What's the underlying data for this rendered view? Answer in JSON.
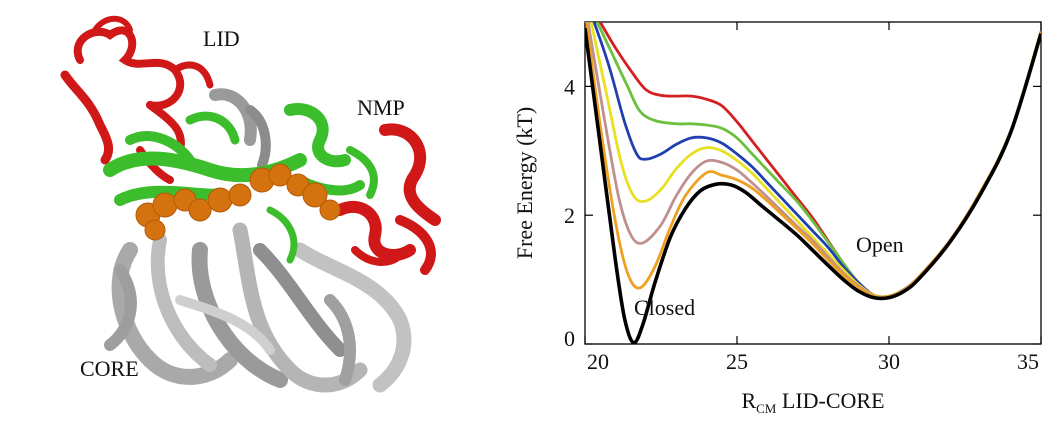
{
  "protein_labels": {
    "lid": "LID",
    "nmp": "NMP",
    "core": "CORE"
  },
  "chart_data": {
    "type": "line",
    "xlabel_main": "R",
    "xlabel_sub": "CM",
    "xlabel_rest": " LID-CORE",
    "ylabel": "Free Energy (kT)",
    "xlim": [
      20,
      35
    ],
    "ylim": [
      0,
      5
    ],
    "xticks": [
      20,
      25,
      30,
      35
    ],
    "yticks": [
      0,
      2,
      4
    ],
    "annotations": {
      "closed": "Closed",
      "open": "Open"
    },
    "series": [
      {
        "color": "#d42020",
        "points": [
          [
            20.5,
            5.0
          ],
          [
            21.0,
            4.6
          ],
          [
            21.5,
            4.25
          ],
          [
            22.0,
            3.95
          ],
          [
            22.5,
            3.86
          ],
          [
            23.0,
            3.85
          ],
          [
            23.5,
            3.85
          ],
          [
            24.0,
            3.8
          ],
          [
            24.5,
            3.7
          ],
          [
            25.0,
            3.45
          ],
          [
            25.5,
            3.15
          ],
          [
            26.0,
            2.85
          ],
          [
            26.5,
            2.55
          ],
          [
            27.0,
            2.25
          ],
          [
            27.5,
            1.95
          ],
          [
            28.0,
            1.6
          ],
          [
            28.5,
            1.25
          ],
          [
            29.0,
            0.95
          ],
          [
            29.5,
            0.76
          ],
          [
            30.0,
            0.74
          ],
          [
            30.5,
            0.85
          ],
          [
            31.0,
            1.05
          ],
          [
            32.0,
            1.6
          ],
          [
            33.0,
            2.35
          ],
          [
            34.0,
            3.3
          ],
          [
            35.0,
            4.85
          ]
        ]
      },
      {
        "color": "#6cc040",
        "points": [
          [
            20.4,
            5.0
          ],
          [
            20.9,
            4.5
          ],
          [
            21.4,
            4.0
          ],
          [
            21.8,
            3.62
          ],
          [
            22.3,
            3.47
          ],
          [
            23.0,
            3.42
          ],
          [
            23.5,
            3.42
          ],
          [
            24.0,
            3.4
          ],
          [
            24.5,
            3.35
          ],
          [
            25.0,
            3.2
          ],
          [
            25.5,
            2.95
          ],
          [
            26.0,
            2.7
          ],
          [
            26.5,
            2.45
          ],
          [
            27.0,
            2.2
          ],
          [
            27.5,
            1.9
          ],
          [
            28.0,
            1.58
          ],
          [
            28.5,
            1.25
          ],
          [
            29.0,
            0.95
          ],
          [
            29.5,
            0.76
          ],
          [
            30.0,
            0.74
          ],
          [
            30.5,
            0.85
          ],
          [
            31.0,
            1.05
          ],
          [
            32.0,
            1.6
          ],
          [
            33.0,
            2.35
          ],
          [
            34.0,
            3.3
          ],
          [
            35.0,
            4.85
          ]
        ]
      },
      {
        "color": "#2040b0",
        "points": [
          [
            20.3,
            5.0
          ],
          [
            20.8,
            4.3
          ],
          [
            21.3,
            3.45
          ],
          [
            21.7,
            2.95
          ],
          [
            22.0,
            2.87
          ],
          [
            22.5,
            2.95
          ],
          [
            23.0,
            3.1
          ],
          [
            23.5,
            3.2
          ],
          [
            24.0,
            3.2
          ],
          [
            24.5,
            3.12
          ],
          [
            25.0,
            2.95
          ],
          [
            25.5,
            2.75
          ],
          [
            26.0,
            2.5
          ],
          [
            26.5,
            2.25
          ],
          [
            27.0,
            2.0
          ],
          [
            27.5,
            1.75
          ],
          [
            28.0,
            1.5
          ],
          [
            28.5,
            1.2
          ],
          [
            29.0,
            0.95
          ],
          [
            29.5,
            0.76
          ],
          [
            30.0,
            0.74
          ],
          [
            30.5,
            0.85
          ],
          [
            31.0,
            1.05
          ],
          [
            32.0,
            1.6
          ],
          [
            33.0,
            2.35
          ],
          [
            34.0,
            3.3
          ],
          [
            35.0,
            4.85
          ]
        ]
      },
      {
        "color": "#e8e020",
        "points": [
          [
            20.2,
            5.0
          ],
          [
            20.7,
            3.9
          ],
          [
            21.2,
            2.8
          ],
          [
            21.6,
            2.3
          ],
          [
            22.0,
            2.22
          ],
          [
            22.5,
            2.4
          ],
          [
            23.0,
            2.72
          ],
          [
            23.5,
            2.95
          ],
          [
            24.0,
            3.05
          ],
          [
            24.5,
            3.0
          ],
          [
            25.0,
            2.85
          ],
          [
            25.5,
            2.65
          ],
          [
            26.0,
            2.4
          ],
          [
            26.5,
            2.15
          ],
          [
            27.0,
            1.9
          ],
          [
            27.5,
            1.65
          ],
          [
            28.0,
            1.4
          ],
          [
            28.5,
            1.15
          ],
          [
            29.0,
            0.92
          ],
          [
            29.5,
            0.76
          ],
          [
            30.0,
            0.74
          ],
          [
            30.5,
            0.85
          ],
          [
            31.0,
            1.05
          ],
          [
            32.0,
            1.6
          ],
          [
            33.0,
            2.35
          ],
          [
            34.0,
            3.3
          ],
          [
            35.0,
            4.85
          ]
        ]
      },
      {
        "color": "#c09090",
        "points": [
          [
            20.1,
            5.0
          ],
          [
            20.6,
            3.6
          ],
          [
            21.1,
            2.3
          ],
          [
            21.5,
            1.7
          ],
          [
            21.9,
            1.57
          ],
          [
            22.5,
            1.85
          ],
          [
            23.0,
            2.3
          ],
          [
            23.5,
            2.65
          ],
          [
            24.0,
            2.84
          ],
          [
            24.5,
            2.82
          ],
          [
            25.0,
            2.7
          ],
          [
            25.5,
            2.5
          ],
          [
            26.0,
            2.28
          ],
          [
            26.5,
            2.05
          ],
          [
            27.0,
            1.82
          ],
          [
            27.5,
            1.6
          ],
          [
            28.0,
            1.35
          ],
          [
            28.5,
            1.1
          ],
          [
            29.0,
            0.9
          ],
          [
            29.5,
            0.75
          ],
          [
            30.0,
            0.74
          ],
          [
            30.5,
            0.85
          ],
          [
            31.0,
            1.05
          ],
          [
            32.0,
            1.6
          ],
          [
            33.0,
            2.35
          ],
          [
            34.0,
            3.3
          ],
          [
            35.0,
            4.85
          ]
        ]
      },
      {
        "color": "#f0a020",
        "points": [
          [
            20.05,
            5.0
          ],
          [
            20.5,
            3.4
          ],
          [
            21.0,
            1.9
          ],
          [
            21.4,
            1.1
          ],
          [
            21.8,
            0.87
          ],
          [
            22.3,
            1.2
          ],
          [
            22.8,
            1.8
          ],
          [
            23.3,
            2.3
          ],
          [
            24.0,
            2.66
          ],
          [
            24.5,
            2.62
          ],
          [
            25.0,
            2.55
          ],
          [
            25.5,
            2.42
          ],
          [
            26.0,
            2.22
          ],
          [
            26.5,
            2.0
          ],
          [
            27.0,
            1.78
          ],
          [
            27.5,
            1.55
          ],
          [
            28.0,
            1.3
          ],
          [
            28.5,
            1.07
          ],
          [
            29.0,
            0.88
          ],
          [
            29.5,
            0.74
          ],
          [
            30.0,
            0.74
          ],
          [
            30.5,
            0.84
          ],
          [
            31.0,
            1.05
          ],
          [
            32.0,
            1.6
          ],
          [
            33.0,
            2.35
          ],
          [
            34.0,
            3.3
          ],
          [
            35.0,
            4.85
          ]
        ]
      },
      {
        "color": "#000000",
        "points": [
          [
            20.0,
            4.9
          ],
          [
            20.5,
            3.1
          ],
          [
            21.0,
            1.3
          ],
          [
            21.3,
            0.4
          ],
          [
            21.6,
            0.02
          ],
          [
            21.9,
            0.3
          ],
          [
            22.3,
            0.95
          ],
          [
            22.8,
            1.65
          ],
          [
            23.3,
            2.1
          ],
          [
            23.8,
            2.38
          ],
          [
            24.3,
            2.48
          ],
          [
            24.8,
            2.47
          ],
          [
            25.3,
            2.35
          ],
          [
            25.8,
            2.15
          ],
          [
            26.5,
            1.88
          ],
          [
            27.0,
            1.68
          ],
          [
            27.5,
            1.45
          ],
          [
            28.0,
            1.22
          ],
          [
            28.5,
            1.0
          ],
          [
            29.0,
            0.82
          ],
          [
            29.5,
            0.72
          ],
          [
            30.0,
            0.72
          ],
          [
            30.5,
            0.82
          ],
          [
            31.0,
            1.02
          ],
          [
            32.0,
            1.58
          ],
          [
            33.0,
            2.32
          ],
          [
            34.0,
            3.28
          ],
          [
            35.0,
            4.82
          ]
        ]
      }
    ]
  }
}
